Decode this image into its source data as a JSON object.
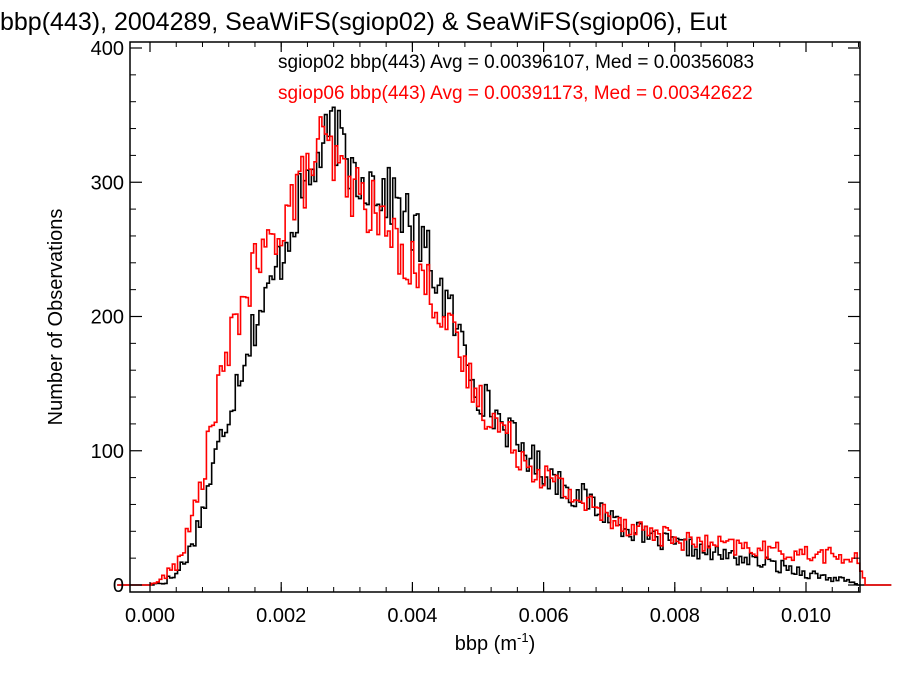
{
  "chart_data": {
    "type": "histogram-step",
    "title": "bbp(443), 2004289, SeaWiFS(sgiop02) & SeaWiFS(sgiop06), Eut",
    "xlabel": "bbp (m",
    "xlabel_sup": "-1",
    "xlabel_end": ")",
    "ylabel": "Number of Observations",
    "xlim": [
      -0.0005,
      0.0113
    ],
    "ylim": [
      0,
      400
    ],
    "x_ticks": [
      0.0,
      0.002,
      0.004,
      0.006,
      0.008,
      0.01
    ],
    "x_tick_labels": [
      "0.000",
      "0.002",
      "0.004",
      "0.006",
      "0.008",
      "0.010"
    ],
    "y_ticks": [
      0,
      100,
      200,
      300,
      400
    ],
    "y_tick_labels": [
      "0",
      "100",
      "200",
      "300",
      "400"
    ],
    "grid": false,
    "legend_placement": "top-right",
    "series": [
      {
        "name": "sgiop02 bbp(443) Avg = 0.00396107, Med = 0.00356083",
        "color": "#000000",
        "bin_edges_range": [
          -0.0003,
          0.0108
        ],
        "anchors": [
          [
            -0.0003,
            0
          ],
          [
            0.0,
            0
          ],
          [
            0.0002,
            2
          ],
          [
            0.0004,
            8
          ],
          [
            0.0006,
            25
          ],
          [
            0.0008,
            55
          ],
          [
            0.001,
            95
          ],
          [
            0.0012,
            130
          ],
          [
            0.0014,
            165
          ],
          [
            0.0016,
            195
          ],
          [
            0.0018,
            215
          ],
          [
            0.002,
            245
          ],
          [
            0.0022,
            275
          ],
          [
            0.0024,
            300
          ],
          [
            0.0026,
            320
          ],
          [
            0.0028,
            340
          ],
          [
            0.003,
            315
          ],
          [
            0.0032,
            305
          ],
          [
            0.0034,
            300
          ],
          [
            0.0036,
            290
          ],
          [
            0.0038,
            285
          ],
          [
            0.004,
            265
          ],
          [
            0.0042,
            250
          ],
          [
            0.0044,
            225
          ],
          [
            0.0046,
            200
          ],
          [
            0.0048,
            175
          ],
          [
            0.005,
            145
          ],
          [
            0.0052,
            130
          ],
          [
            0.0054,
            120
          ],
          [
            0.0056,
            105
          ],
          [
            0.0058,
            95
          ],
          [
            0.006,
            85
          ],
          [
            0.0062,
            78
          ],
          [
            0.0064,
            70
          ],
          [
            0.0066,
            65
          ],
          [
            0.0068,
            58
          ],
          [
            0.007,
            52
          ],
          [
            0.0072,
            45
          ],
          [
            0.0074,
            40
          ],
          [
            0.0076,
            35
          ],
          [
            0.0078,
            32
          ],
          [
            0.008,
            30
          ],
          [
            0.0082,
            28
          ],
          [
            0.0084,
            25
          ],
          [
            0.0086,
            23
          ],
          [
            0.0088,
            22
          ],
          [
            0.009,
            20
          ],
          [
            0.0092,
            18
          ],
          [
            0.0094,
            16
          ],
          [
            0.0096,
            14
          ],
          [
            0.0098,
            12
          ],
          [
            0.01,
            9
          ],
          [
            0.0102,
            7
          ],
          [
            0.0104,
            5
          ],
          [
            0.0106,
            3
          ],
          [
            0.0108,
            0
          ]
        ]
      },
      {
        "name": "sgiop06 bbp(443) Avg = 0.00391173, Med = 0.00342622",
        "color": "#ff0000",
        "bin_edges_range": [
          -0.0003,
          0.0109
        ],
        "anchors": [
          [
            -0.0003,
            0
          ],
          [
            0.0,
            0
          ],
          [
            0.0002,
            5
          ],
          [
            0.0004,
            15
          ],
          [
            0.0006,
            40
          ],
          [
            0.0008,
            80
          ],
          [
            0.001,
            135
          ],
          [
            0.0012,
            175
          ],
          [
            0.0014,
            210
          ],
          [
            0.0016,
            235
          ],
          [
            0.0018,
            250
          ],
          [
            0.002,
            270
          ],
          [
            0.0022,
            290
          ],
          [
            0.0024,
            305
          ],
          [
            0.0026,
            330
          ],
          [
            0.0028,
            315
          ],
          [
            0.003,
            300
          ],
          [
            0.0032,
            290
          ],
          [
            0.0034,
            280
          ],
          [
            0.0036,
            265
          ],
          [
            0.0038,
            250
          ],
          [
            0.004,
            240
          ],
          [
            0.0042,
            225
          ],
          [
            0.0044,
            210
          ],
          [
            0.0046,
            185
          ],
          [
            0.0048,
            160
          ],
          [
            0.005,
            140
          ],
          [
            0.0052,
            125
          ],
          [
            0.0054,
            115
          ],
          [
            0.0056,
            100
          ],
          [
            0.0058,
            90
          ],
          [
            0.006,
            82
          ],
          [
            0.0062,
            75
          ],
          [
            0.0064,
            68
          ],
          [
            0.0066,
            62
          ],
          [
            0.0068,
            56
          ],
          [
            0.007,
            52
          ],
          [
            0.0072,
            47
          ],
          [
            0.0074,
            43
          ],
          [
            0.0076,
            40
          ],
          [
            0.0078,
            37
          ],
          [
            0.008,
            35
          ],
          [
            0.0082,
            32
          ],
          [
            0.0084,
            31
          ],
          [
            0.0086,
            30
          ],
          [
            0.0088,
            29
          ],
          [
            0.009,
            28
          ],
          [
            0.0092,
            27
          ],
          [
            0.0094,
            26
          ],
          [
            0.0096,
            25
          ],
          [
            0.0098,
            24
          ],
          [
            0.01,
            23
          ],
          [
            0.0102,
            23
          ],
          [
            0.0104,
            22
          ],
          [
            0.0106,
            20
          ],
          [
            0.0108,
            18
          ],
          [
            0.0109,
            0
          ]
        ]
      }
    ]
  }
}
